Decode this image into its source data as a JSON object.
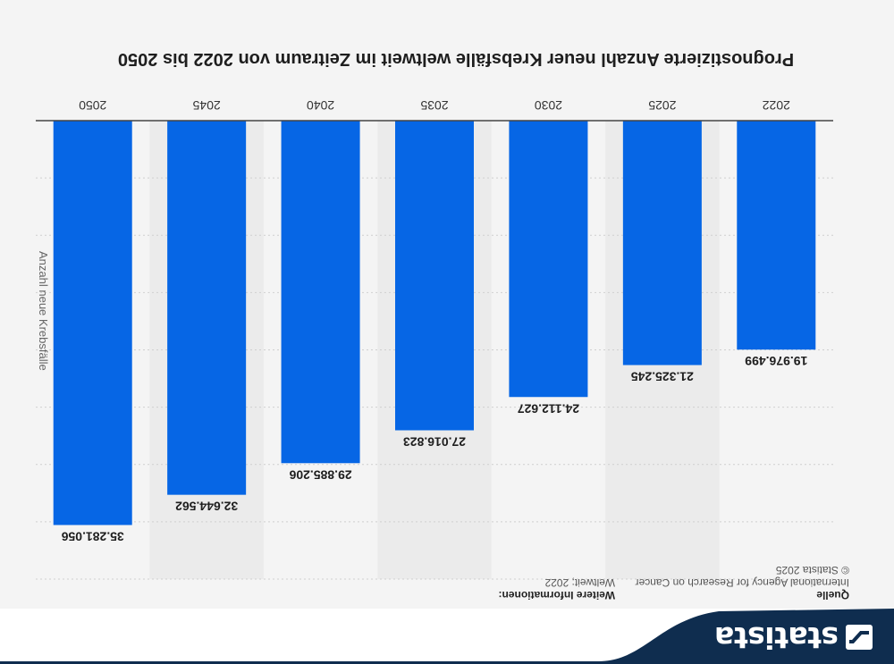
{
  "title": "Prognostizierte Anzahl neuer Krebsfälle weltweit im Zeitraum von 2022 bis 2050",
  "brand": {
    "name": "statista",
    "color": "#0f2d4f",
    "icon": "statista-logo-icon"
  },
  "info": {
    "source_label": "Quelle",
    "source_text": "International Agency for Research on Cancer",
    "copyright": "© Statista 2025",
    "more_label": "Weitere Informationen:",
    "more_text": "Weltweit; 2022"
  },
  "colors": {
    "bar": "#0666e5",
    "band": "#ebebeb"
  },
  "chart_data": {
    "type": "bar",
    "categories": [
      "2022",
      "2025",
      "2030",
      "2035",
      "2040",
      "2045",
      "2050"
    ],
    "values": [
      19976499,
      21325245,
      24112627,
      27016823,
      29885206,
      32644562,
      35281056
    ],
    "value_labels": [
      "19.976.499",
      "21.325.245",
      "24.112.627",
      "27.016.823",
      "29.885.206",
      "32.644.562",
      "35.281.056"
    ],
    "ylabel": "Anzahl neue Krebsfälle",
    "ylim": [
      0,
      40000000
    ],
    "grid": true
  }
}
